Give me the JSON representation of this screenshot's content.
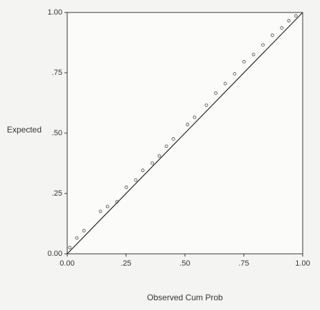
{
  "chart_data": {
    "type": "scatter",
    "x_label": "Observed Cum Prob",
    "y_label": "Expected",
    "x": [
      0.02,
      0.05,
      0.08,
      0.15,
      0.18,
      0.22,
      0.26,
      0.3,
      0.33,
      0.37,
      0.4,
      0.43,
      0.46,
      0.52,
      0.55,
      0.6,
      0.64,
      0.68,
      0.72,
      0.76,
      0.8,
      0.84,
      0.88,
      0.92,
      0.95,
      0.98
    ],
    "values": [
      0.02,
      0.06,
      0.09,
      0.17,
      0.19,
      0.21,
      0.27,
      0.3,
      0.34,
      0.37,
      0.4,
      0.44,
      0.47,
      0.53,
      0.56,
      0.61,
      0.66,
      0.7,
      0.74,
      0.79,
      0.82,
      0.86,
      0.9,
      0.93,
      0.96,
      0.98
    ],
    "color": "#444444",
    "xlim": [
      0,
      1
    ],
    "ylim": [
      0,
      1
    ],
    "xticks": [
      {
        "value": 0,
        "label": "0.00"
      },
      {
        "value": 0.25,
        "label": ".25"
      },
      {
        "value": 0.5,
        "label": ".50"
      },
      {
        "value": 0.75,
        "label": ".75"
      },
      {
        "value": 1,
        "label": "1.00"
      }
    ],
    "yticks": [
      {
        "value": 0,
        "label": "0.00"
      },
      {
        "value": 0.25,
        "label": ".25"
      },
      {
        "value": 0.5,
        "label": ".50"
      },
      {
        "value": 0.75,
        "label": ".75"
      },
      {
        "value": 1,
        "label": "1.00"
      }
    ],
    "grid": false
  }
}
